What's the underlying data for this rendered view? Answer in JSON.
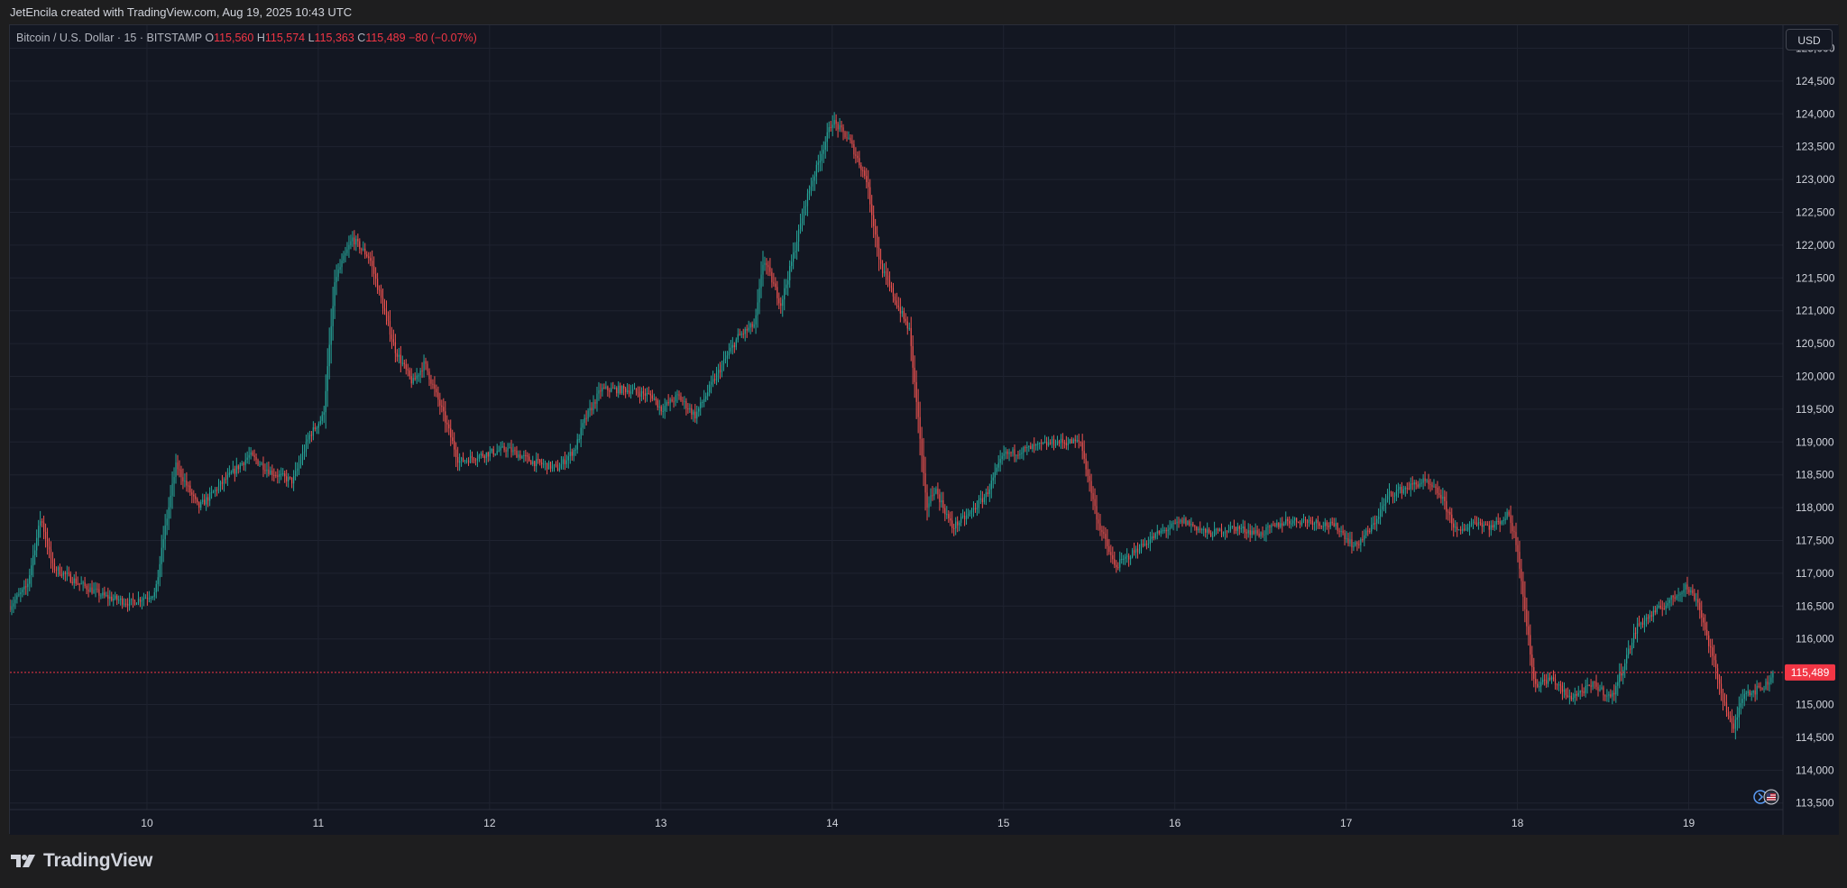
{
  "caption": "JetEncila created with TradingView.com, Aug 19, 2025 10:43 UTC",
  "symbol": {
    "name": "Bitcoin / U.S. Dollar · 15 · BITSTAMP",
    "o_label": "O",
    "o_value": "115,560",
    "h_label": "H",
    "h_value": "115,574",
    "l_label": "L",
    "l_value": "115,363",
    "c_label": "C",
    "c_value": "115,489",
    "change": "−80 (−0.07%)"
  },
  "currency": "USD",
  "brand": "TradingView",
  "colors": {
    "background": "#131722",
    "up": "#26a69a",
    "down": "#ef5350",
    "grid": "#1f2330",
    "axis_text": "#d1d4dc",
    "last_price": "#f23645"
  },
  "chart_data": {
    "type": "candlestick",
    "title": "Bitcoin / U.S. Dollar · 15 · BITSTAMP",
    "interval": "15",
    "x_tick_labels": [
      "10",
      "11",
      "12",
      "13",
      "14",
      "15",
      "16",
      "17",
      "18",
      "19"
    ],
    "y_tick_labels": [
      "125,000",
      "124,500",
      "124,000",
      "123,500",
      "123,000",
      "122,500",
      "122,000",
      "121,500",
      "121,000",
      "120,500",
      "120,000",
      "119,500",
      "119,000",
      "118,500",
      "118,000",
      "117,500",
      "117,000",
      "116,500",
      "116,000",
      "115,000",
      "114,500",
      "114,000",
      "113,500"
    ],
    "ylim": [
      113400,
      125350
    ],
    "xlim": [
      9.2,
      19.55
    ],
    "last_price": 115489,
    "last_price_label": "115,489",
    "grid": true,
    "price_path": [
      [
        9.2,
        116500
      ],
      [
        9.3,
        116800
      ],
      [
        9.38,
        117850
      ],
      [
        9.45,
        117100
      ],
      [
        9.6,
        116850
      ],
      [
        9.75,
        116650
      ],
      [
        9.9,
        116550
      ],
      [
        10.05,
        116700
      ],
      [
        10.1,
        117600
      ],
      [
        10.17,
        118650
      ],
      [
        10.3,
        118000
      ],
      [
        10.45,
        118400
      ],
      [
        10.6,
        118800
      ],
      [
        10.72,
        118550
      ],
      [
        10.85,
        118400
      ],
      [
        10.95,
        119100
      ],
      [
        11.03,
        119400
      ],
      [
        11.1,
        121500
      ],
      [
        11.2,
        122100
      ],
      [
        11.3,
        121800
      ],
      [
        11.45,
        120400
      ],
      [
        11.55,
        119900
      ],
      [
        11.62,
        120200
      ],
      [
        11.72,
        119500
      ],
      [
        11.82,
        118700
      ],
      [
        11.95,
        118800
      ],
      [
        12.1,
        118900
      ],
      [
        12.25,
        118700
      ],
      [
        12.4,
        118600
      ],
      [
        12.5,
        118900
      ],
      [
        12.55,
        119300
      ],
      [
        12.65,
        119800
      ],
      [
        12.8,
        119800
      ],
      [
        12.95,
        119700
      ],
      [
        13.0,
        119500
      ],
      [
        13.1,
        119700
      ],
      [
        13.2,
        119400
      ],
      [
        13.3,
        119900
      ],
      [
        13.45,
        120600
      ],
      [
        13.55,
        120800
      ],
      [
        13.6,
        121800
      ],
      [
        13.7,
        121100
      ],
      [
        13.75,
        121600
      ],
      [
        13.85,
        122700
      ],
      [
        13.95,
        123500
      ],
      [
        14.0,
        123900
      ],
      [
        14.1,
        123600
      ],
      [
        14.2,
        123000
      ],
      [
        14.28,
        121700
      ],
      [
        14.38,
        121100
      ],
      [
        14.45,
        120700
      ],
      [
        14.5,
        119400
      ],
      [
        14.55,
        118000
      ],
      [
        14.6,
        118300
      ],
      [
        14.7,
        117700
      ],
      [
        14.8,
        117900
      ],
      [
        14.9,
        118200
      ],
      [
        15.0,
        118800
      ],
      [
        15.15,
        118900
      ],
      [
        15.3,
        119000
      ],
      [
        15.45,
        119000
      ],
      [
        15.55,
        117800
      ],
      [
        15.65,
        117100
      ],
      [
        15.75,
        117300
      ],
      [
        15.9,
        117600
      ],
      [
        16.05,
        117800
      ],
      [
        16.2,
        117600
      ],
      [
        16.35,
        117700
      ],
      [
        16.5,
        117600
      ],
      [
        16.65,
        117800
      ],
      [
        16.8,
        117800
      ],
      [
        16.95,
        117700
      ],
      [
        17.05,
        117400
      ],
      [
        17.15,
        117700
      ],
      [
        17.25,
        118200
      ],
      [
        17.35,
        118300
      ],
      [
        17.45,
        118400
      ],
      [
        17.55,
        118200
      ],
      [
        17.65,
        117600
      ],
      [
        17.75,
        117800
      ],
      [
        17.85,
        117700
      ],
      [
        17.95,
        117900
      ],
      [
        18.0,
        117400
      ],
      [
        18.05,
        116300
      ],
      [
        18.1,
        115300
      ],
      [
        18.2,
        115400
      ],
      [
        18.3,
        115100
      ],
      [
        18.45,
        115300
      ],
      [
        18.55,
        115100
      ],
      [
        18.62,
        115600
      ],
      [
        18.7,
        116200
      ],
      [
        18.8,
        116400
      ],
      [
        18.9,
        116600
      ],
      [
        18.98,
        116800
      ],
      [
        19.05,
        116600
      ],
      [
        19.12,
        115900
      ],
      [
        19.2,
        115100
      ],
      [
        19.26,
        114600
      ],
      [
        19.32,
        115200
      ],
      [
        19.38,
        115200
      ],
      [
        19.45,
        115300
      ],
      [
        19.5,
        115489
      ]
    ]
  }
}
